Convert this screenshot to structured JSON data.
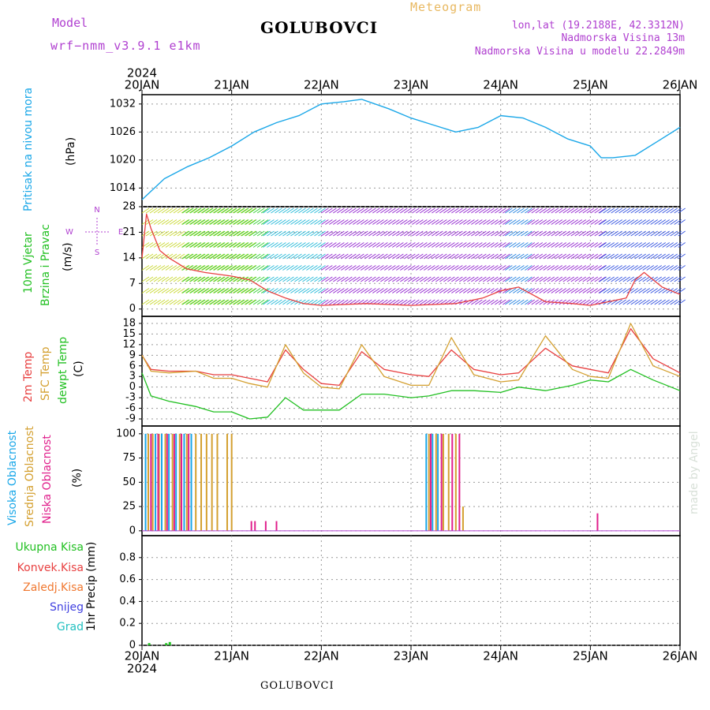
{
  "header": {
    "model_label": "Model",
    "model_name": "wrf−nmm_v3.9.1  e1km",
    "station": "GOLUBOVCI",
    "chart_kind": "Meteogram",
    "lonlat": "lon,lat (19.2188E, 42.3312N)",
    "altitude": "Nadmorska Visina 13m",
    "model_altitude": "Nadmorska Visina u modelu 22.2849m",
    "footer_station": "GOLUBOVCI",
    "watermark": "made by Angel"
  },
  "colors": {
    "pressure": "#1aa7e8",
    "temp2m": "#e84040",
    "sfc": "#d4a030",
    "dewpt": "#22c022",
    "purple_text": "#b040d0",
    "header_orange": "#e8b860"
  },
  "chart_data": [
    {
      "type": "line",
      "panel": "pressure",
      "ylabel_line1": "Pritisak na nivou mora",
      "unit": "(hPa)",
      "ylim": [
        1010,
        1034
      ],
      "yticks": [
        1014,
        1020,
        1026,
        1032
      ],
      "grid": true,
      "x_days": [
        "20JAN",
        "21JAN",
        "22JAN",
        "23JAN",
        "24JAN",
        "25JAN",
        "26JAN"
      ],
      "x_year": "2024",
      "series": [
        {
          "x": [
            0,
            0.25,
            0.5,
            0.75,
            1.0,
            1.25,
            1.5,
            1.75,
            2.0,
            2.25,
            2.45,
            2.75,
            3.0,
            3.25,
            3.5,
            3.75,
            4.0,
            4.25,
            4.5,
            4.75,
            5.0,
            5.12,
            5.25,
            5.5,
            5.75,
            6.0
          ],
          "values": [
            1011.5,
            1016.0,
            1018.5,
            1020.5,
            1023.0,
            1026.0,
            1028.0,
            1029.5,
            1032.0,
            1032.5,
            1033.0,
            1031.0,
            1029.0,
            1027.5,
            1026.0,
            1027.0,
            1029.5,
            1029.0,
            1027.0,
            1024.5,
            1023.0,
            1020.5,
            1020.5,
            1021.0,
            1024.0,
            1027.0
          ]
        }
      ]
    },
    {
      "type": "line",
      "panel": "wind",
      "ylabel_line1": "10m Vjetar",
      "ylabel_line2": "Brzina i Pravac",
      "unit": "(m/s)",
      "compass": {
        "north": "N",
        "south": "S",
        "east": "E",
        "west": "W"
      },
      "ylim": [
        -2,
        28
      ],
      "yticks": [
        0,
        7,
        14,
        21,
        28
      ],
      "grid": true,
      "series": [
        {
          "name": "speed",
          "x": [
            0,
            0.05,
            0.1,
            0.2,
            0.3,
            0.5,
            0.7,
            1.0,
            1.2,
            1.4,
            1.6,
            1.8,
            2.0,
            2.5,
            3.0,
            3.5,
            3.8,
            4.0,
            4.2,
            4.5,
            4.8,
            5.0,
            5.2,
            5.4,
            5.5,
            5.6,
            5.8,
            6.0
          ],
          "values": [
            14,
            26,
            22,
            16,
            14,
            11,
            10,
            9,
            8,
            5,
            3,
            1.5,
            1,
            1.5,
            1,
            1.5,
            3,
            5,
            6,
            2,
            1.5,
            1,
            2,
            3,
            8,
            10,
            6,
            4
          ]
        }
      ],
      "barb_bands": [
        {
          "from": 0.0,
          "to": 1.2,
          "color": "#c8d830"
        },
        {
          "from": 0.45,
          "to": 1.35,
          "color": "#30d030"
        },
        {
          "from": 1.35,
          "to": 2.0,
          "color": "#22b8d8"
        },
        {
          "from": 2.0,
          "to": 4.05,
          "color": "#9020d0"
        },
        {
          "from": 4.05,
          "to": 4.3,
          "color": "#2080e0"
        },
        {
          "from": 4.3,
          "to": 5.1,
          "color": "#9020d0"
        },
        {
          "from": 5.1,
          "to": 6.0,
          "color": "#3050e0"
        }
      ]
    },
    {
      "type": "line",
      "panel": "temperature",
      "ylabel_line1": "2m Temp",
      "ylabel_line2": "SFC Temp",
      "ylabel_line3": "dewpt Temp",
      "unit": "(C)",
      "ylim": [
        -11,
        20
      ],
      "yticks": [
        -9,
        -6,
        -3,
        0,
        3,
        6,
        9,
        12,
        15,
        18
      ],
      "grid": true,
      "series": [
        {
          "name": "2m Temp",
          "x": [
            0,
            0.1,
            0.3,
            0.6,
            0.8,
            1.0,
            1.2,
            1.4,
            1.6,
            1.8,
            2.0,
            2.2,
            2.45,
            2.7,
            3.0,
            3.2,
            3.45,
            3.7,
            4.0,
            4.2,
            4.5,
            4.8,
            5.0,
            5.2,
            5.45,
            5.7,
            6.0
          ],
          "values": [
            9,
            5,
            4.5,
            4.5,
            3.5,
            3.5,
            2.5,
            1.5,
            10.5,
            5,
            1,
            0.5,
            10,
            5,
            3.5,
            3,
            10.5,
            5,
            3.5,
            4,
            11,
            6,
            5,
            4,
            16.5,
            8,
            4
          ]
        },
        {
          "name": "SFC Temp",
          "x": [
            0,
            0.1,
            0.3,
            0.6,
            0.8,
            1.0,
            1.2,
            1.4,
            1.6,
            1.8,
            2.0,
            2.2,
            2.45,
            2.7,
            3.0,
            3.2,
            3.45,
            3.7,
            4.0,
            4.2,
            4.5,
            4.8,
            5.0,
            5.2,
            5.45,
            5.7,
            6.0
          ],
          "values": [
            9,
            4.5,
            4,
            4.5,
            2.5,
            2.5,
            1,
            0,
            12,
            4,
            0,
            -0.5,
            12,
            3,
            0.5,
            0.5,
            14,
            3.5,
            1.5,
            2,
            14.5,
            5,
            3,
            2.5,
            18,
            6,
            3
          ]
        },
        {
          "name": "dewpt Temp",
          "x": [
            0,
            0.1,
            0.3,
            0.6,
            0.8,
            1.0,
            1.2,
            1.4,
            1.6,
            1.8,
            2.0,
            2.2,
            2.45,
            2.7,
            3.0,
            3.2,
            3.45,
            3.7,
            4.0,
            4.2,
            4.5,
            4.8,
            5.0,
            5.2,
            5.45,
            5.7,
            6.0
          ],
          "values": [
            4,
            -2.5,
            -4,
            -5.5,
            -7,
            -7,
            -9,
            -8.5,
            -3,
            -6.5,
            -6.5,
            -6.5,
            -2,
            -2,
            -3,
            -2.5,
            -1,
            -1,
            -1.5,
            0,
            -1,
            0.5,
            2,
            1.5,
            5,
            2,
            -1
          ]
        }
      ]
    },
    {
      "type": "bar",
      "panel": "cloud",
      "ylabel_line1": "Visoka Oblacnost",
      "ylabel_line2": "Srednja Oblacnost",
      "ylabel_line3": "Niska Oblacnost",
      "unit": "(%)",
      "ylim": [
        -5,
        108
      ],
      "yticks": [
        0,
        25,
        50,
        75,
        100
      ],
      "grid": true,
      "series": [
        {
          "name": "Visoka Oblacnost",
          "color": "#1aa7e8",
          "x": [
            0.04,
            0.15,
            0.22,
            0.3,
            0.38,
            0.47,
            0.55,
            3.17,
            3.24,
            3.3
          ],
          "values": [
            100,
            100,
            100,
            100,
            100,
            100,
            100,
            100,
            100,
            100
          ]
        },
        {
          "name": "Srednja Oblacnost",
          "color": "#d4a030",
          "x": [
            0.07,
            0.12,
            0.19,
            0.26,
            0.34,
            0.42,
            0.5,
            0.6,
            0.66,
            0.72,
            0.78,
            0.84,
            0.95,
            1.0,
            3.2,
            3.28,
            3.36,
            3.42,
            3.5,
            3.58
          ],
          "values": [
            100,
            100,
            100,
            100,
            100,
            100,
            100,
            100,
            100,
            100,
            100,
            100,
            100,
            100,
            100,
            100,
            100,
            100,
            100,
            25
          ]
        },
        {
          "name": "Niska Oblacnost",
          "color": "#e0208c",
          "x": [
            0.1,
            0.18,
            0.28,
            0.36,
            0.44,
            0.52,
            1.22,
            1.26,
            1.38,
            1.5,
            3.22,
            3.34,
            3.46,
            3.54,
            5.08
          ],
          "values": [
            100,
            100,
            100,
            100,
            100,
            100,
            10,
            10,
            10,
            10,
            100,
            100,
            100,
            100,
            18
          ]
        }
      ]
    },
    {
      "type": "bar",
      "panel": "precip",
      "ylabel_line1": "Ukupna Kisa",
      "ylabel_line2": "Konvek.Kisa",
      "ylabel_line3": "Zaledj.Kisa",
      "ylabel_line4": "Snijeg",
      "ylabel_line5": "Grad",
      "unit": "1hr Precip (mm)",
      "ylim": [
        0,
        1.0
      ],
      "yticks": [
        0,
        0.2,
        0.4,
        0.6,
        0.8
      ],
      "ytick_labels": [
        "0",
        "0.2",
        "0.4",
        "0.6",
        "0.8"
      ],
      "grid": true,
      "x_days": [
        "20JAN",
        "21JAN",
        "22JAN",
        "23JAN",
        "24JAN",
        "25JAN",
        "26JAN"
      ],
      "x_year": "2024",
      "series": [
        {
          "name": "Ukupna Kisa",
          "color": "#22c022",
          "x": [
            0.08,
            0.27,
            0.31
          ],
          "values": [
            0.02,
            0.02,
            0.03
          ]
        }
      ]
    }
  ]
}
